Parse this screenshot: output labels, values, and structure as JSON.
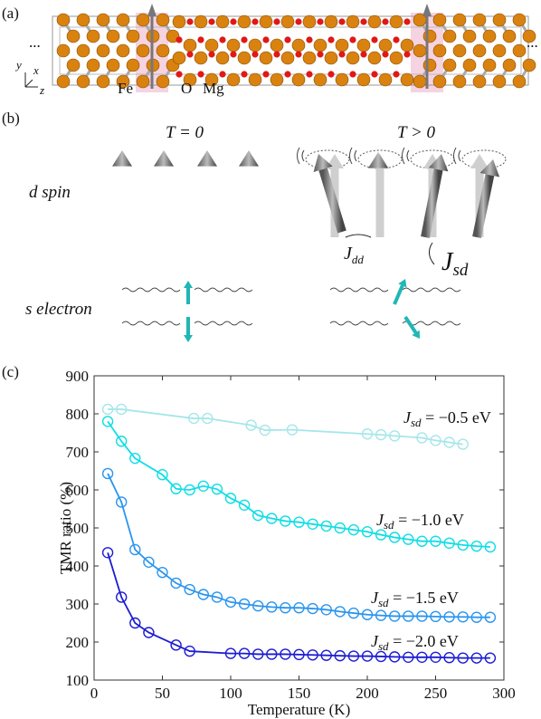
{
  "panel_a": {
    "label": "(a)",
    "ellipsis_left": "...",
    "ellipsis_right": "...",
    "axis_y": "y",
    "axis_x": "x",
    "axis_z": "z",
    "atom_fe": "Fe",
    "atom_o": "O",
    "atom_mg": "Mg"
  },
  "panel_b": {
    "label": "(b)",
    "left_title": "T = 0",
    "right_title": "T > 0",
    "row_d": "d spin",
    "row_s": "s electron",
    "coupling_dd": {
      "symbol": "J",
      "subscript": "dd"
    },
    "coupling_sd": {
      "symbol": "J",
      "subscript": "sd"
    }
  },
  "chart_data": {
    "type": "line",
    "panel_label": "(c)",
    "x_label": "Temperature (K)",
    "y_label": "TMR ratio (%)",
    "xlim": [
      0,
      300
    ],
    "xticks": [
      0,
      50,
      100,
      150,
      200,
      250,
      300
    ],
    "ylim": [
      100,
      900
    ],
    "yticks": [
      100,
      200,
      300,
      400,
      500,
      600,
      700,
      800,
      900
    ],
    "series": [
      {
        "label": {
          "symbol": "J",
          "subscript": "sd",
          "text": " = −0.5 eV"
        },
        "color": "#a6e6ea",
        "x": [
          10,
          20,
          73,
          83,
          115,
          125,
          145,
          200,
          210,
          220,
          240,
          250,
          260,
          270
        ],
        "values": [
          812,
          812,
          788,
          788,
          770,
          757,
          758,
          747,
          745,
          742,
          737,
          730,
          725,
          720
        ]
      },
      {
        "label": {
          "symbol": "J",
          "subscript": "sd",
          "text": " = −1.0 eV"
        },
        "color": "#10dde6",
        "x": [
          10,
          20,
          30,
          50,
          60,
          70,
          80,
          90,
          100,
          110,
          120,
          130,
          140,
          150,
          160,
          170,
          180,
          190,
          200,
          210,
          220,
          230,
          240,
          250,
          260,
          270,
          280,
          290
        ],
        "values": [
          780,
          728,
          683,
          640,
          603,
          600,
          610,
          602,
          578,
          560,
          533,
          525,
          518,
          515,
          510,
          505,
          500,
          495,
          490,
          482,
          475,
          470,
          465,
          465,
          460,
          455,
          452,
          450
        ]
      },
      {
        "label": {
          "symbol": "J",
          "subscript": "sd",
          "text": " = −1.5 eV"
        },
        "color": "#2a95ee",
        "x": [
          10,
          20,
          30,
          40,
          50,
          60,
          70,
          80,
          90,
          100,
          110,
          120,
          130,
          140,
          150,
          160,
          170,
          180,
          190,
          200,
          210,
          220,
          230,
          240,
          250,
          260,
          270,
          280,
          290
        ],
        "values": [
          643,
          568,
          443,
          410,
          383,
          355,
          338,
          325,
          318,
          305,
          300,
          295,
          292,
          290,
          290,
          288,
          285,
          280,
          276,
          272,
          270,
          268,
          268,
          268,
          267,
          266,
          266,
          265,
          265
        ]
      },
      {
        "label": {
          "symbol": "J",
          "subscript": "sd",
          "text": " = −2.0 eV"
        },
        "color": "#1c1cd4",
        "x": [
          10,
          20,
          30,
          40,
          60,
          70,
          100,
          110,
          120,
          130,
          140,
          150,
          160,
          170,
          180,
          190,
          200,
          210,
          220,
          230,
          240,
          250,
          260,
          270,
          280,
          290
        ],
        "values": [
          435,
          318,
          250,
          225,
          192,
          176,
          170,
          170,
          168,
          168,
          168,
          167,
          166,
          165,
          164,
          163,
          163,
          162,
          161,
          160,
          160,
          160,
          159,
          158,
          158,
          158
        ]
      }
    ]
  }
}
